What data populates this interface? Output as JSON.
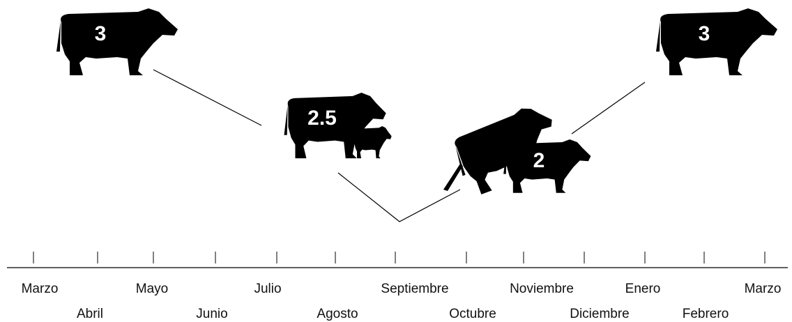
{
  "stages": [
    {
      "label": "3"
    },
    {
      "label": "2.5"
    },
    {
      "label": "2"
    },
    {
      "label": "3"
    }
  ],
  "months": [
    "Marzo",
    "Abril",
    "Mayo",
    "Junio",
    "Julio",
    "Agosto",
    "Septiembre",
    "Octubre",
    "Noviembre",
    "Diciembre",
    "Enero",
    "Febrero",
    "Marzo"
  ]
}
